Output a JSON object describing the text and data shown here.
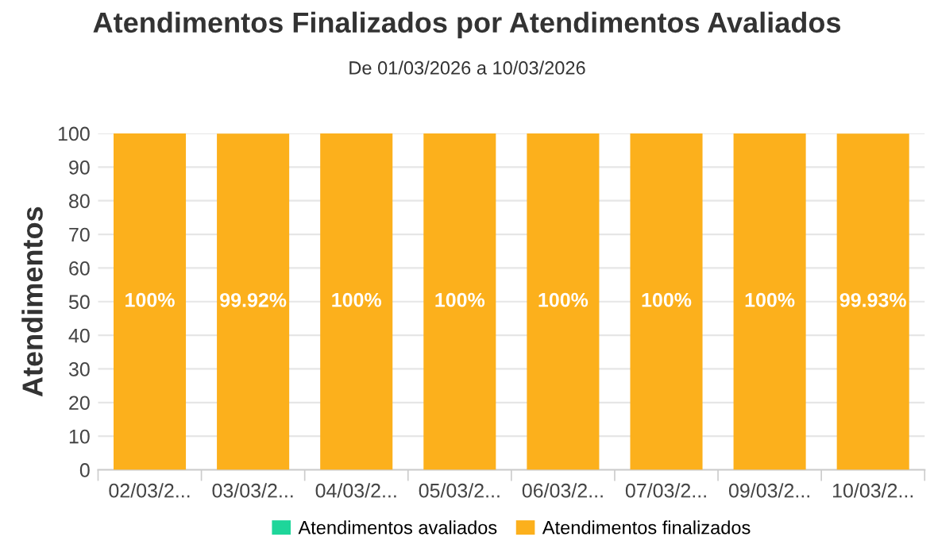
{
  "chart_data": {
    "type": "bar",
    "stacked": true,
    "title": "Atendimentos Finalizados por Atendimentos Avaliados",
    "subtitle": "De 01/03/2026 a 10/03/2026",
    "ylabel": "Atendimentos",
    "categories": [
      "02/03/2...",
      "03/03/2...",
      "04/03/2...",
      "05/03/2...",
      "06/03/2...",
      "07/03/2...",
      "09/03/2...",
      "10/03/2..."
    ],
    "series": [
      {
        "name": "Atendimentos avaliados",
        "color": "#1ed69a",
        "values": [
          null,
          null,
          null,
          null,
          null,
          null,
          null,
          null
        ]
      },
      {
        "name": "Atendimentos finalizados",
        "color": "#fcb01c",
        "values": [
          100,
          99.92,
          100,
          100,
          100,
          100,
          100,
          99.93
        ],
        "value_labels": [
          "100%",
          "99.92%",
          "100%",
          "100%",
          "100%",
          "100%",
          "100%",
          "99.93%"
        ]
      }
    ],
    "ylim": [
      0,
      100
    ],
    "yticks": [
      0,
      10,
      20,
      30,
      40,
      50,
      60,
      70,
      80,
      90,
      100
    ],
    "grid": "y",
    "legend": "bottom"
  }
}
